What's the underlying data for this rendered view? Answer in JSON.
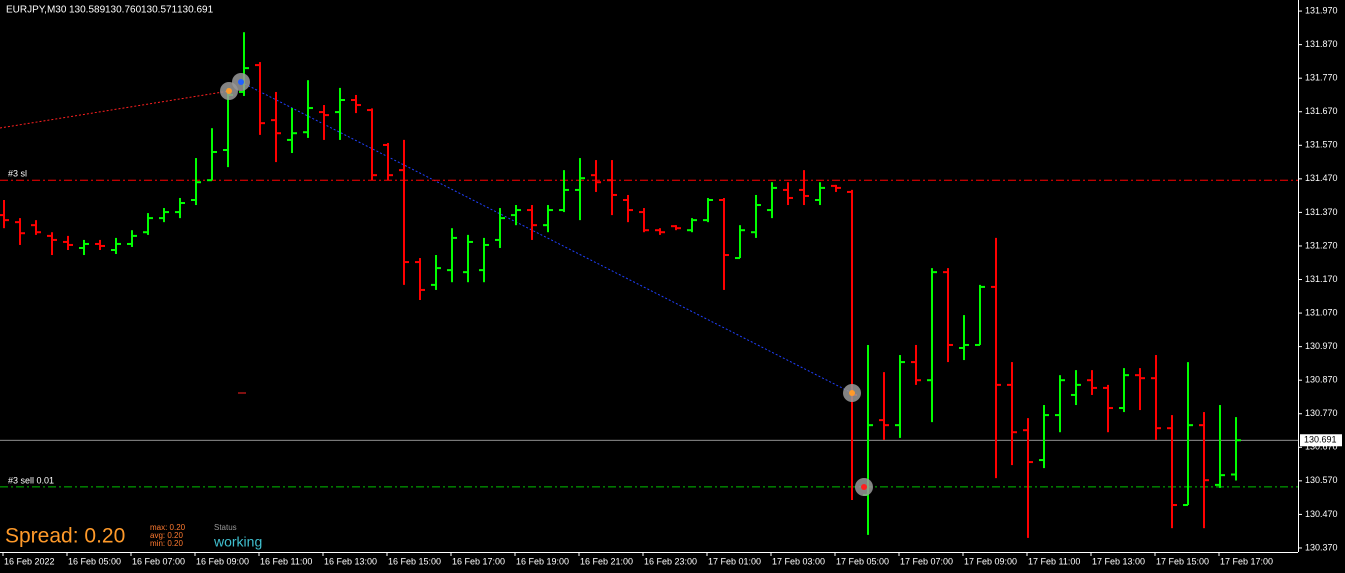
{
  "chart_data": {
    "type": "ohlc",
    "title": "EURJPY,M30",
    "ohlc_label": [
      "130.589",
      "130.760",
      "130.571",
      "130.691"
    ],
    "up_color": "#00ff00",
    "down_color": "#ff0000",
    "categories": [
      "16 Feb 2022",
      null,
      null,
      null,
      "16 Feb 05:00",
      null,
      null,
      null,
      "16 Feb 07:00",
      null,
      null,
      null,
      "16 Feb 09:00",
      null,
      null,
      null,
      "16 Feb 11:00",
      null,
      null,
      null,
      "16 Feb 13:00",
      null,
      null,
      null,
      "16 Feb 15:00",
      null,
      null,
      null,
      "16 Feb 17:00",
      null,
      null,
      null,
      "16 Feb 19:00",
      null,
      null,
      null,
      "16 Feb 21:00",
      null,
      null,
      null,
      "16 Feb 23:00",
      null,
      null,
      null,
      "17 Feb 01:00",
      null,
      null,
      null,
      "17 Feb 03:00",
      null,
      null,
      null,
      "17 Feb 05:00",
      null,
      null,
      null,
      "17 Feb 07:00",
      null,
      null,
      null,
      "17 Feb 09:00",
      null,
      null,
      null,
      "17 Feb 11:00",
      null,
      null,
      null,
      "17 Feb 13:00",
      null,
      null,
      null,
      "17 Feb 15:00",
      null,
      null,
      null,
      "17 Feb 17:00",
      null
    ],
    "open": [
      131.362,
      131.341,
      131.332,
      131.3,
      131.282,
      131.264,
      131.276,
      131.258,
      131.276,
      131.311,
      131.353,
      131.371,
      131.407,
      131.466,
      131.556,
      131.729,
      131.809,
      131.645,
      131.586,
      131.609,
      131.669,
      131.669,
      131.705,
      131.675,
      131.571,
      131.496,
      131.222,
      131.154,
      131.198,
      131.192,
      131.198,
      131.288,
      131.362,
      131.377,
      131.332,
      131.377,
      131.437,
      131.481,
      131.466,
      131.407,
      131.371,
      131.317,
      131.329,
      131.317,
      131.347,
      131.407,
      131.234,
      131.311,
      131.377,
      131.437,
      131.437,
      131.407,
      131.449,
      131.431,
      130.528,
      130.751,
      130.736,
      130.924,
      130.87,
      131.192,
      130.966,
      130.975,
      131.148,
      130.856,
      130.721,
      130.632,
      130.766,
      130.826,
      130.87,
      130.847,
      130.787,
      130.885,
      130.876,
      130.727,
      130.498,
      130.736,
      130.558,
      130.589
    ],
    "high": [
      131.407,
      131.353,
      131.347,
      131.311,
      131.3,
      131.288,
      131.288,
      131.294,
      131.317,
      131.368,
      131.383,
      131.413,
      131.532,
      131.621,
      131.741,
      131.907,
      131.818,
      131.729,
      131.681,
      131.764,
      131.69,
      131.741,
      131.72,
      131.68,
      131.577,
      131.586,
      131.234,
      131.243,
      131.323,
      131.303,
      131.294,
      131.383,
      131.392,
      131.392,
      131.392,
      131.496,
      131.532,
      131.526,
      131.526,
      131.422,
      131.383,
      131.323,
      131.332,
      131.353,
      131.413,
      131.413,
      131.332,
      131.422,
      131.46,
      131.46,
      131.496,
      131.46,
      131.452,
      131.437,
      130.975,
      130.894,
      130.945,
      130.975,
      131.204,
      131.204,
      131.064,
      131.154,
      131.294,
      130.924,
      130.757,
      130.796,
      130.885,
      130.9,
      130.9,
      130.856,
      130.906,
      130.906,
      130.945,
      130.766,
      130.924,
      130.775,
      130.796,
      130.76
    ],
    "low": [
      131.323,
      131.273,
      131.303,
      131.243,
      131.258,
      131.243,
      131.258,
      131.246,
      131.267,
      131.303,
      131.341,
      131.353,
      131.392,
      131.466,
      131.505,
      131.717,
      131.601,
      131.52,
      131.547,
      131.592,
      131.586,
      131.586,
      131.666,
      131.466,
      131.466,
      131.154,
      131.109,
      131.139,
      131.162,
      131.162,
      131.162,
      131.264,
      131.332,
      131.288,
      131.311,
      131.371,
      131.347,
      131.431,
      131.362,
      131.341,
      131.311,
      131.303,
      131.317,
      131.311,
      131.341,
      131.139,
      131.234,
      131.294,
      131.353,
      131.392,
      131.392,
      131.392,
      131.431,
      130.513,
      130.409,
      130.692,
      130.698,
      130.856,
      130.745,
      130.924,
      130.93,
      130.975,
      130.578,
      130.617,
      130.4,
      130.608,
      130.715,
      130.796,
      130.826,
      130.715,
      130.775,
      130.781,
      130.692,
      130.429,
      130.498,
      130.429,
      130.549,
      130.571
    ],
    "close": [
      131.347,
      131.308,
      131.311,
      131.288,
      131.273,
      131.276,
      131.27,
      131.276,
      131.3,
      131.353,
      131.371,
      131.398,
      131.46,
      131.55,
      131.72,
      131.8,
      131.636,
      131.606,
      131.606,
      131.681,
      131.66,
      131.705,
      131.69,
      131.481,
      131.481,
      131.222,
      131.139,
      131.204,
      131.294,
      131.282,
      131.273,
      131.353,
      131.377,
      131.332,
      131.377,
      131.437,
      131.472,
      131.46,
      131.422,
      131.377,
      131.317,
      131.311,
      131.323,
      131.347,
      131.407,
      131.243,
      131.317,
      131.392,
      131.443,
      131.413,
      131.419,
      131.443,
      131.443,
      130.826,
      130.736,
      130.736,
      130.924,
      130.87,
      131.192,
      130.975,
      130.975,
      131.148,
      130.856,
      130.715,
      130.626,
      130.766,
      130.87,
      130.856,
      130.847,
      130.787,
      130.885,
      130.876,
      130.727,
      130.498,
      130.736,
      130.572,
      130.587,
      130.691
    ],
    "ylim": [
      130.358,
      132.003
    ],
    "yticks": [
      {
        "value": 131.97,
        "label": "131.970"
      },
      {
        "value": 131.87,
        "label": "131.870"
      },
      {
        "value": 131.77,
        "label": "131.770"
      },
      {
        "value": 131.67,
        "label": "131.670"
      },
      {
        "value": 131.57,
        "label": "131.570"
      },
      {
        "value": 131.47,
        "label": "131.470"
      },
      {
        "value": 131.37,
        "label": "131.370"
      },
      {
        "value": 131.27,
        "label": "131.270"
      },
      {
        "value": 131.17,
        "label": "131.170"
      },
      {
        "value": 131.07,
        "label": "131.070"
      },
      {
        "value": 130.97,
        "label": "130.970"
      },
      {
        "value": 130.87,
        "label": "130.870"
      },
      {
        "value": 130.77,
        "label": "130.770"
      },
      {
        "value": 130.67,
        "label": "130.670"
      },
      {
        "value": 130.57,
        "label": "130.570"
      },
      {
        "value": 130.47,
        "label": "130.470"
      },
      {
        "value": 130.37,
        "label": "130.370"
      }
    ],
    "levels": [
      {
        "label": "#3 sl",
        "value": 131.466,
        "color": "#ff0000"
      },
      {
        "label": "#3 sell 0.01",
        "value": 130.552,
        "color": "#00c000"
      }
    ],
    "spread": {
      "label": "Spread: 0.20",
      "max": "max: 0.20",
      "avg": "avg: 0.20",
      "min": "min: 0.20",
      "status_label": "Status",
      "status": "working"
    }
  }
}
